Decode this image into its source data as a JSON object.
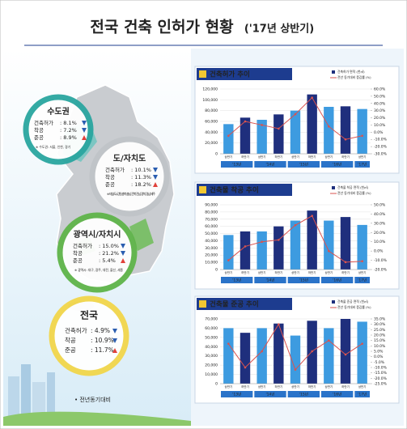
{
  "header": {
    "title": "전국 건축 인허가 현황",
    "subtitle": "('17년 상반기)"
  },
  "regions": [
    {
      "title": "수도권",
      "rows": [
        {
          "label": "건축허가",
          "value": ": 8.1%",
          "trend": "down"
        },
        {
          "label": "착공",
          "value": ": 7.2%",
          "trend": "down"
        },
        {
          "label": "준공",
          "value": ": 8.9%",
          "trend": "up"
        }
      ],
      "note": "※ 수도권: 서울, 인천, 경기"
    },
    {
      "title": "도/자치도",
      "rows": [
        {
          "label": "건축허가",
          "value": ": 10.1%",
          "trend": "down"
        },
        {
          "label": "착공",
          "value": ": 11.3%",
          "trend": "down"
        },
        {
          "label": "준공",
          "value": ": 18.2%",
          "trend": "up"
        }
      ],
      "note": "※ 지방(도): 강원, 충북, 충남, 전북, 전남, 경북, 경남, 제주"
    },
    {
      "title": "광역시/자치시",
      "rows": [
        {
          "label": "건축허가",
          "value": ": 15.0%",
          "trend": "down"
        },
        {
          "label": "착공",
          "value": ": 21.2%",
          "trend": "down"
        },
        {
          "label": "준공",
          "value": ": 5.4%",
          "trend": "up"
        }
      ],
      "note": "※ 광역시: 대구, 광주, 대전, 울산, 세종"
    },
    {
      "title": "전국",
      "rows": [
        {
          "label": "건축허가",
          "value": ": 4.9%",
          "trend": "down"
        },
        {
          "label": "착공",
          "value": ": 10.9%",
          "trend": "down"
        },
        {
          "label": "준공",
          "value": ": 11.7%",
          "trend": "up"
        }
      ]
    }
  ],
  "footnote": "• 전년동기대비",
  "chart_data": [
    {
      "type": "combo",
      "title": "건축허가 추이",
      "categories": [
        "상반기",
        "하반기",
        "상반기",
        "하반기",
        "상반기",
        "하반기",
        "상반기",
        "하반기",
        "상반기"
      ],
      "year_labels": [
        "'13년",
        "'14년",
        "'15년",
        "'16년",
        "'17년"
      ],
      "series": [
        {
          "name": "건축허가 면적 (천㎡)",
          "colors": [
            "#3d9be0",
            "#1f2f7d"
          ],
          "values": [
            55000,
            67000,
            63000,
            73000,
            80000,
            110000,
            87000,
            88000,
            83000
          ]
        },
        {
          "name": "전년 동기대비 증감률 (%)",
          "color": "#d9534f",
          "axis": "y2",
          "values": [
            -5,
            15,
            10,
            5,
            25,
            48,
            8,
            -10,
            -5
          ]
        }
      ],
      "ylim": [
        0,
        120000
      ],
      "yticks": [
        0,
        {
          "value": 20000,
          "label": "20,000"
        },
        {
          "value": 40000,
          "label": "40,000"
        },
        {
          "value": 60000,
          "label": "60,000"
        },
        {
          "value": 80000,
          "label": "80,000"
        },
        {
          "value": 100000,
          "label": "100,000"
        },
        {
          "value": 120000,
          "label": "120,000"
        }
      ],
      "y2lim": [
        -30,
        60
      ],
      "y2ticks": [
        {
          "value": -30,
          "label": "-30.0%"
        },
        {
          "value": -20,
          "label": "-20.0%"
        },
        {
          "value": -10,
          "label": "-10.0%"
        },
        {
          "value": 0,
          "label": "0.0%"
        },
        {
          "value": 10,
          "label": "10.0%"
        },
        {
          "value": 20,
          "label": "20.0%"
        },
        {
          "value": 30,
          "label": "30.0%"
        },
        {
          "value": 40,
          "label": "40.0%"
        },
        {
          "value": 50,
          "label": "50.0%"
        },
        {
          "value": 60,
          "label": "60.0%"
        }
      ],
      "grid": true
    },
    {
      "type": "combo",
      "title": "건축물 착공 추이",
      "categories": [
        "상반기",
        "하반기",
        "상반기",
        "하반기",
        "상반기",
        "하반기",
        "상반기",
        "하반기",
        "상반기"
      ],
      "year_labels": [
        "'13년",
        "'14년",
        "'15년",
        "'16년",
        "'17년"
      ],
      "series": [
        {
          "name": "건축물 착공 면적 (천㎡)",
          "colors": [
            "#3d9be0",
            "#1f2f7d"
          ],
          "values": [
            48000,
            53000,
            53000,
            60000,
            68000,
            82000,
            68000,
            73000,
            62000
          ]
        },
        {
          "name": "전년 동기대비 증감률 (%)",
          "color": "#d9534f",
          "axis": "y2",
          "values": [
            -10,
            5,
            10,
            12,
            28,
            38,
            0,
            -12,
            -11
          ]
        }
      ],
      "ylim": [
        0,
        90000
      ],
      "yticks": [
        0,
        {
          "value": 10000,
          "label": "10,000"
        },
        {
          "value": 20000,
          "label": "20,000"
        },
        {
          "value": 30000,
          "label": "30,000"
        },
        {
          "value": 40000,
          "label": "40,000"
        },
        {
          "value": 50000,
          "label": "50,000"
        },
        {
          "value": 60000,
          "label": "60,000"
        },
        {
          "value": 70000,
          "label": "70,000"
        },
        {
          "value": 80000,
          "label": "80,000"
        },
        {
          "value": 90000,
          "label": "90,000"
        }
      ],
      "y2lim": [
        -20,
        50
      ],
      "y2ticks": [
        {
          "value": -20,
          "label": "-20.0%"
        },
        {
          "value": -10,
          "label": "-10.0%"
        },
        {
          "value": 0,
          "label": "0.0%"
        },
        {
          "value": 10,
          "label": "10.0%"
        },
        {
          "value": 20,
          "label": "20.0%"
        },
        {
          "value": 30,
          "label": "30.0%"
        },
        {
          "value": 40,
          "label": "40.0%"
        },
        {
          "value": 50,
          "label": "50.0%"
        }
      ],
      "grid": true
    },
    {
      "type": "combo",
      "title": "건축물 준공 추이",
      "categories": [
        "상반기",
        "하반기",
        "상반기",
        "하반기",
        "상반기",
        "하반기",
        "상반기",
        "하반기",
        "상반기"
      ],
      "year_labels": [
        "'13년",
        "'14년",
        "'15년",
        "'16년",
        "'17년"
      ],
      "series": [
        {
          "name": "건축물 준공 면적 (천㎡)",
          "colors": [
            "#3d9be0",
            "#1f2f7d"
          ],
          "values": [
            60000,
            55000,
            60000,
            65000,
            52000,
            68000,
            60000,
            70000,
            67000
          ]
        },
        {
          "name": "전년 동기대비 증감률 (%)",
          "color": "#d9534f",
          "axis": "y2",
          "values": [
            12,
            -10,
            5,
            30,
            -12,
            5,
            15,
            2,
            12
          ]
        }
      ],
      "ylim": [
        0,
        70000
      ],
      "yticks": [
        0,
        {
          "value": 10000,
          "label": "10,000"
        },
        {
          "value": 20000,
          "label": "20,000"
        },
        {
          "value": 30000,
          "label": "30,000"
        },
        {
          "value": 40000,
          "label": "40,000"
        },
        {
          "value": 50000,
          "label": "50,000"
        },
        {
          "value": 60000,
          "label": "60,000"
        },
        {
          "value": 70000,
          "label": "70,000"
        }
      ],
      "y2lim": [
        -25,
        35
      ],
      "y2ticks": [
        {
          "value": -25,
          "label": "-25.0%"
        },
        {
          "value": -20,
          "label": "-20.0%"
        },
        {
          "value": -15,
          "label": "-15.0%"
        },
        {
          "value": -10,
          "label": "-10.0%"
        },
        {
          "value": -5,
          "label": "-5.0%"
        },
        {
          "value": 0,
          "label": "0.0%"
        },
        {
          "value": 5,
          "label": "5.0%"
        },
        {
          "value": 10,
          "label": "10.0%"
        },
        {
          "value": 15,
          "label": "15.0%"
        },
        {
          "value": 20,
          "label": "20.0%"
        },
        {
          "value": 25,
          "label": "25.0%"
        },
        {
          "value": 30,
          "label": "30.0%"
        },
        {
          "value": 35,
          "label": "35.0%"
        }
      ],
      "grid": true
    }
  ]
}
